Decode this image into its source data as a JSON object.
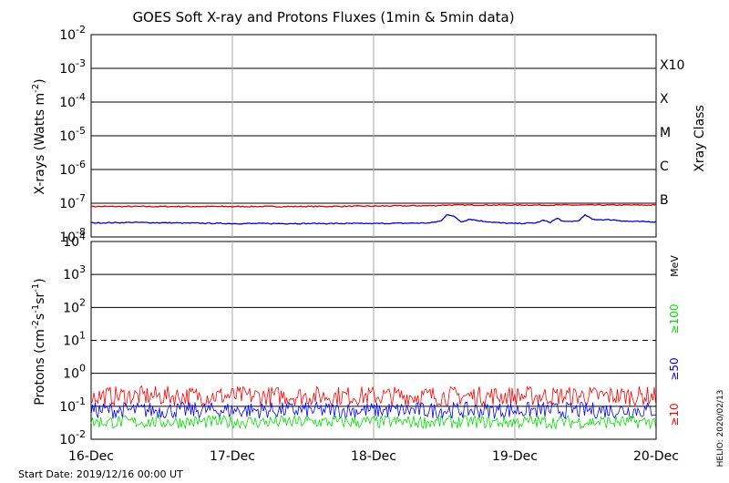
{
  "title": "GOES Soft X-ray and Protons Fluxes   (1min & 5min data)",
  "start_date": "Start Date: 2019/12/16 00:00 UT",
  "helio_stamp": "HELIO: 2020/02/13",
  "colors": {
    "xray_long": "#e00000",
    "xray_short": "#0000cc",
    "proton_10": "#ff0000",
    "proton_50": "#0000ff",
    "proton_100": "#00e000",
    "grid": "#000000",
    "day_line": "#aaaaaa"
  },
  "chart_data": [
    {
      "type": "line",
      "panel": "xray",
      "ylabel": "X-rays (Watts m-2)",
      "ylabel_parts": {
        "base": "X-rays (Watts m",
        "sup": "-2",
        "end": ")"
      },
      "yscale": "log",
      "ylim": [
        1e-08,
        0.01
      ],
      "yticks": [
        "10-2",
        "10-3",
        "10-4",
        "10-5",
        "10-6",
        "10-7",
        "10-8"
      ],
      "right_axis_label": "Xray Class",
      "xray_classes": [
        {
          "label": "X10",
          "level": 0.001
        },
        {
          "label": "X",
          "level": 0.0001
        },
        {
          "label": "M",
          "level": 1e-05
        },
        {
          "label": "C",
          "level": 1e-06
        },
        {
          "label": "B",
          "level": 1e-07
        }
      ],
      "series": [
        {
          "color_key": "xray_long",
          "points": [
            [
              0,
              8e-08
            ],
            [
              0.5,
              8e-08
            ],
            [
              1.0,
              8e-08
            ],
            [
              1.5,
              8e-08
            ],
            [
              2.0,
              8.2e-08
            ],
            [
              2.45,
              8.5e-08
            ],
            [
              2.5,
              8.8e-08
            ],
            [
              3.0,
              8.8e-08
            ],
            [
              3.5,
              8.8e-08
            ],
            [
              4.0,
              8.8e-08
            ]
          ]
        },
        {
          "color_key": "xray_short",
          "points": [
            [
              0,
              2.6e-08
            ],
            [
              0.3,
              2.7e-08
            ],
            [
              0.6,
              2.6e-08
            ],
            [
              1.0,
              2.5e-08
            ],
            [
              1.5,
              2.5e-08
            ],
            [
              2.0,
              2.5e-08
            ],
            [
              2.4,
              2.6e-08
            ],
            [
              2.48,
              3e-08
            ],
            [
              2.52,
              4.8e-08
            ],
            [
              2.58,
              3.8e-08
            ],
            [
              2.62,
              2.8e-08
            ],
            [
              2.68,
              3.4e-08
            ],
            [
              2.75,
              3e-08
            ],
            [
              2.9,
              2.6e-08
            ],
            [
              3.0,
              2.5e-08
            ],
            [
              3.15,
              2.6e-08
            ],
            [
              3.2,
              3.1e-08
            ],
            [
              3.25,
              2.7e-08
            ],
            [
              3.3,
              3.6e-08
            ],
            [
              3.35,
              2.8e-08
            ],
            [
              3.45,
              3e-08
            ],
            [
              3.5,
              4.5e-08
            ],
            [
              3.55,
              3.3e-08
            ],
            [
              3.7,
              3.2e-08
            ],
            [
              3.8,
              2.9e-08
            ],
            [
              4.0,
              2.8e-08
            ]
          ]
        }
      ]
    },
    {
      "type": "line",
      "panel": "protons",
      "ylabel_parts": {
        "base": "Protons (cm",
        "sup1": "-2",
        "mid": "s",
        "sup2": "-1",
        "mid2": "sr",
        "sup3": "-1",
        "end": ")"
      },
      "yscale": "log",
      "ylim": [
        0.01,
        10000
      ],
      "yticks": [
        "104",
        "103",
        "102",
        "101",
        "100",
        "10-1",
        "10-2"
      ],
      "dashed_line_level": 10,
      "unit_label": "MeV",
      "energy_labels": [
        {
          "label": "≥100",
          "color_key": "proton_100"
        },
        {
          "label": "≥50",
          "color_key": "proton_50"
        },
        {
          "label": "≥10",
          "color_key": "proton_10"
        }
      ],
      "series": [
        {
          "name": "≥10",
          "color_key": "proton_10",
          "baseline": 0.22,
          "spread": 0.6
        },
        {
          "name": "≥50",
          "color_key": "proton_50",
          "baseline": 0.08,
          "spread": 0.5
        },
        {
          "name": "≥100",
          "color_key": "proton_100",
          "baseline": 0.035,
          "spread": 0.4
        }
      ]
    }
  ],
  "x_axis": {
    "xlim": [
      0,
      4
    ],
    "ticks": [
      {
        "label": "16-Dec",
        "day": 0
      },
      {
        "label": "17-Dec",
        "day": 1
      },
      {
        "label": "18-Dec",
        "day": 2
      },
      {
        "label": "19-Dec",
        "day": 3
      },
      {
        "label": "20-Dec",
        "day": 4
      }
    ]
  }
}
